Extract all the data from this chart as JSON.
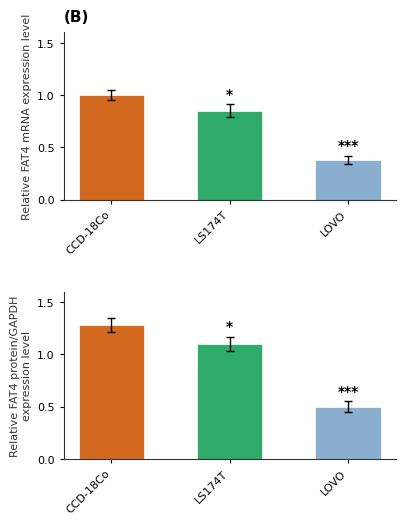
{
  "top_chart": {
    "title": "(B)",
    "ylabel": "Relative FAT4 mRNA expression level",
    "categories": [
      "CCD-18Co",
      "LS174T",
      "LOVO"
    ],
    "values": [
      1.0,
      0.85,
      0.38
    ],
    "errors": [
      0.05,
      0.06,
      0.04
    ],
    "colors": [
      "#D2691E",
      "#2EAA6A",
      "#8AAECF"
    ],
    "ylim": [
      0,
      1.6
    ],
    "yticks": [
      0.0,
      0.5,
      1.0,
      1.5
    ],
    "significance": [
      "",
      "*",
      "***"
    ]
  },
  "bottom_chart": {
    "ylabel": "Relative FAT4 protein/GAPDH\nexpression level",
    "categories": [
      "CCD-18Co",
      "LS174T",
      "LOVO"
    ],
    "values": [
      1.28,
      1.1,
      0.5
    ],
    "errors": [
      0.07,
      0.07,
      0.05
    ],
    "colors": [
      "#D2691E",
      "#2EAA6A",
      "#8AAECF"
    ],
    "ylim": [
      0,
      1.6
    ],
    "yticks": [
      0.0,
      0.5,
      1.0,
      1.5
    ],
    "significance": [
      "",
      "*",
      "***"
    ]
  },
  "background_color": "#FFFFFF",
  "bar_width": 0.55,
  "axis_color": "#333333",
  "text_color": "#333333",
  "tick_fontsize": 8,
  "label_fontsize": 8,
  "title_fontsize": 11,
  "sig_fontsize": 10
}
